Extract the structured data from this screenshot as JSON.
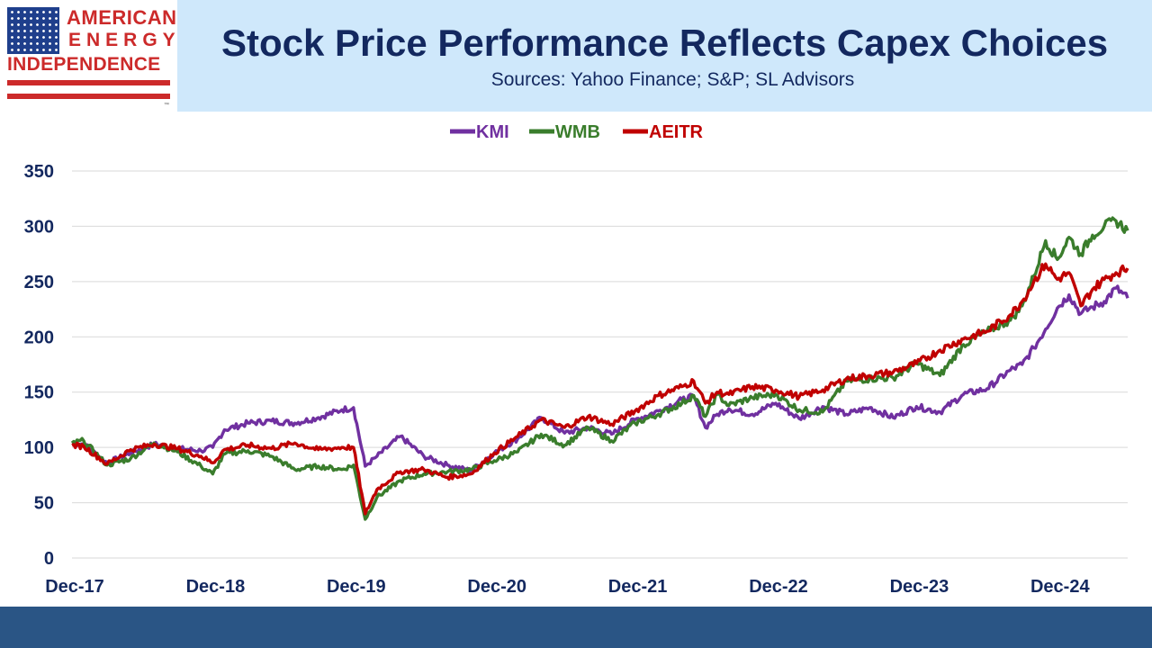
{
  "header": {
    "logo": {
      "line1": "AMERICAN",
      "line2": "ENERGY",
      "line3": "INDEPENDENCE",
      "tm": "™"
    },
    "title": "Stock Price Performance Reflects Capex Choices",
    "subtitle": "Sources: Yahoo Finance; S&P; SL Advisors"
  },
  "colors": {
    "header_bg": "#cfe8fb",
    "title": "#13285f",
    "footer": "#2a5585",
    "logo_red": "#cc2a2a",
    "logo_blue": "#1f3f8c"
  },
  "chart_data": {
    "type": "line",
    "title": "",
    "xlabel": "",
    "ylabel": "",
    "ylim": [
      0,
      350
    ],
    "yticks": [
      0,
      50,
      100,
      150,
      200,
      250,
      300,
      350
    ],
    "xlim": [
      0,
      90
    ],
    "x_unit": "months since Dec-17",
    "xtick_labels": [
      "Dec-17",
      "Dec-18",
      "Dec-19",
      "Dec-20",
      "Dec-21",
      "Dec-22",
      "Dec-23",
      "Dec-24"
    ],
    "xtick_positions": [
      0,
      12,
      24,
      36,
      48,
      60,
      72,
      84
    ],
    "grid": "horizontal",
    "legend_position": "top-center",
    "series": [
      {
        "name": "KMI",
        "color": "#7030a0",
        "x": [
          0,
          1,
          3,
          5,
          7,
          9,
          11,
          12,
          13,
          15,
          17,
          19,
          21,
          23,
          24,
          25,
          26,
          28,
          30,
          32,
          34,
          36,
          38,
          40,
          42,
          44,
          46,
          48,
          50,
          52,
          53,
          54,
          55,
          56,
          58,
          60,
          62,
          64,
          66,
          68,
          70,
          72,
          74,
          76,
          78,
          80,
          81,
          82,
          83,
          84,
          85,
          86,
          87,
          88,
          89,
          90
        ],
        "values": [
          104,
          103,
          86,
          95,
          103,
          99,
          97,
          100,
          116,
          122,
          124,
          122,
          127,
          134,
          136,
          83,
          92,
          110,
          92,
          84,
          79,
          95,
          108,
          127,
          113,
          118,
          112,
          125,
          133,
          143,
          146,
          118,
          130,
          135,
          130,
          140,
          126,
          137,
          130,
          136,
          127,
          137,
          132,
          148,
          153,
          170,
          175,
          190,
          207,
          226,
          238,
          221,
          227,
          232,
          244,
          235
        ]
      },
      {
        "name": "WMB",
        "color": "#3a7d2c",
        "x": [
          0,
          1,
          3,
          5,
          7,
          9,
          11,
          12,
          13,
          15,
          17,
          19,
          21,
          23,
          24,
          25,
          26,
          28,
          30,
          32,
          34,
          36,
          38,
          40,
          42,
          44,
          46,
          48,
          50,
          52,
          53,
          54,
          55,
          56,
          58,
          60,
          62,
          64,
          66,
          68,
          70,
          72,
          74,
          76,
          78,
          80,
          81,
          82,
          83,
          84,
          85,
          86,
          87,
          88,
          89,
          90
        ],
        "values": [
          104,
          106,
          84,
          90,
          104,
          96,
          83,
          76,
          94,
          97,
          92,
          80,
          83,
          80,
          84,
          35,
          55,
          70,
          76,
          78,
          80,
          88,
          96,
          112,
          102,
          118,
          106,
          122,
          130,
          140,
          147,
          128,
          148,
          138,
          145,
          148,
          134,
          132,
          160,
          162,
          163,
          176,
          165,
          193,
          205,
          215,
          228,
          255,
          287,
          270,
          290,
          275,
          292,
          300,
          305,
          296
        ]
      },
      {
        "name": "AEITR",
        "color": "#c00000",
        "x": [
          0,
          1,
          3,
          5,
          7,
          9,
          11,
          12,
          13,
          15,
          17,
          19,
          21,
          23,
          24,
          25,
          26,
          28,
          30,
          32,
          34,
          36,
          38,
          40,
          42,
          44,
          46,
          48,
          50,
          52,
          53,
          54,
          55,
          56,
          58,
          60,
          62,
          64,
          66,
          68,
          70,
          72,
          74,
          76,
          78,
          80,
          81,
          82,
          83,
          84,
          85,
          86,
          87,
          88,
          89,
          90
        ],
        "values": [
          102,
          101,
          85,
          98,
          103,
          99,
          92,
          86,
          98,
          102,
          99,
          104,
          98,
          100,
          100,
          40,
          62,
          78,
          80,
          73,
          76,
          95,
          110,
          125,
          118,
          128,
          121,
          133,
          147,
          155,
          160,
          140,
          150,
          148,
          155,
          152,
          146,
          152,
          162,
          165,
          168,
          176,
          188,
          198,
          205,
          220,
          232,
          250,
          266,
          252,
          258,
          228,
          243,
          252,
          258,
          262
        ]
      }
    ]
  }
}
